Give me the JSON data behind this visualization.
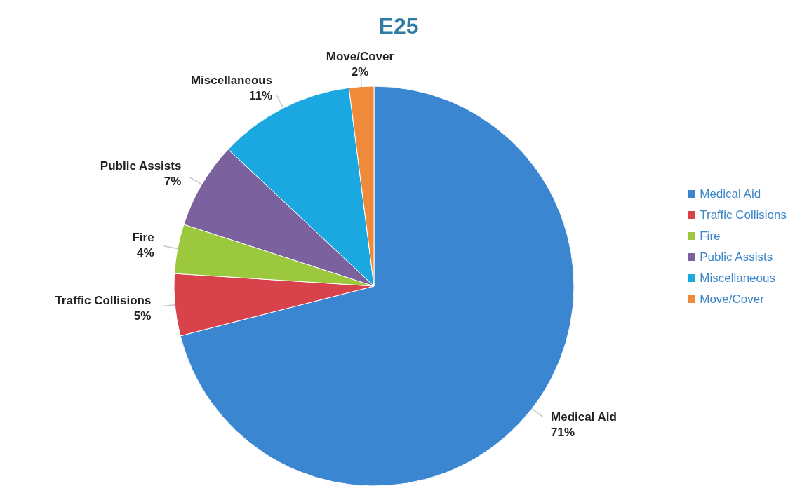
{
  "chart_data": {
    "type": "pie",
    "title": "E25",
    "categories": [
      "Medical Aid",
      "Traffic Collisions",
      "Fire",
      "Public Assists",
      "Miscellaneous",
      "Move/Cover"
    ],
    "values": [
      71,
      5,
      4,
      7,
      11,
      2
    ],
    "value_labels": [
      "71%",
      "5%",
      "4%",
      "7%",
      "11%",
      "2%"
    ],
    "colors": [
      "#3b86d1",
      "#d8424b",
      "#9cc83d",
      "#7c619f",
      "#1ba8e0",
      "#f08a3b"
    ],
    "legend": "right"
  }
}
